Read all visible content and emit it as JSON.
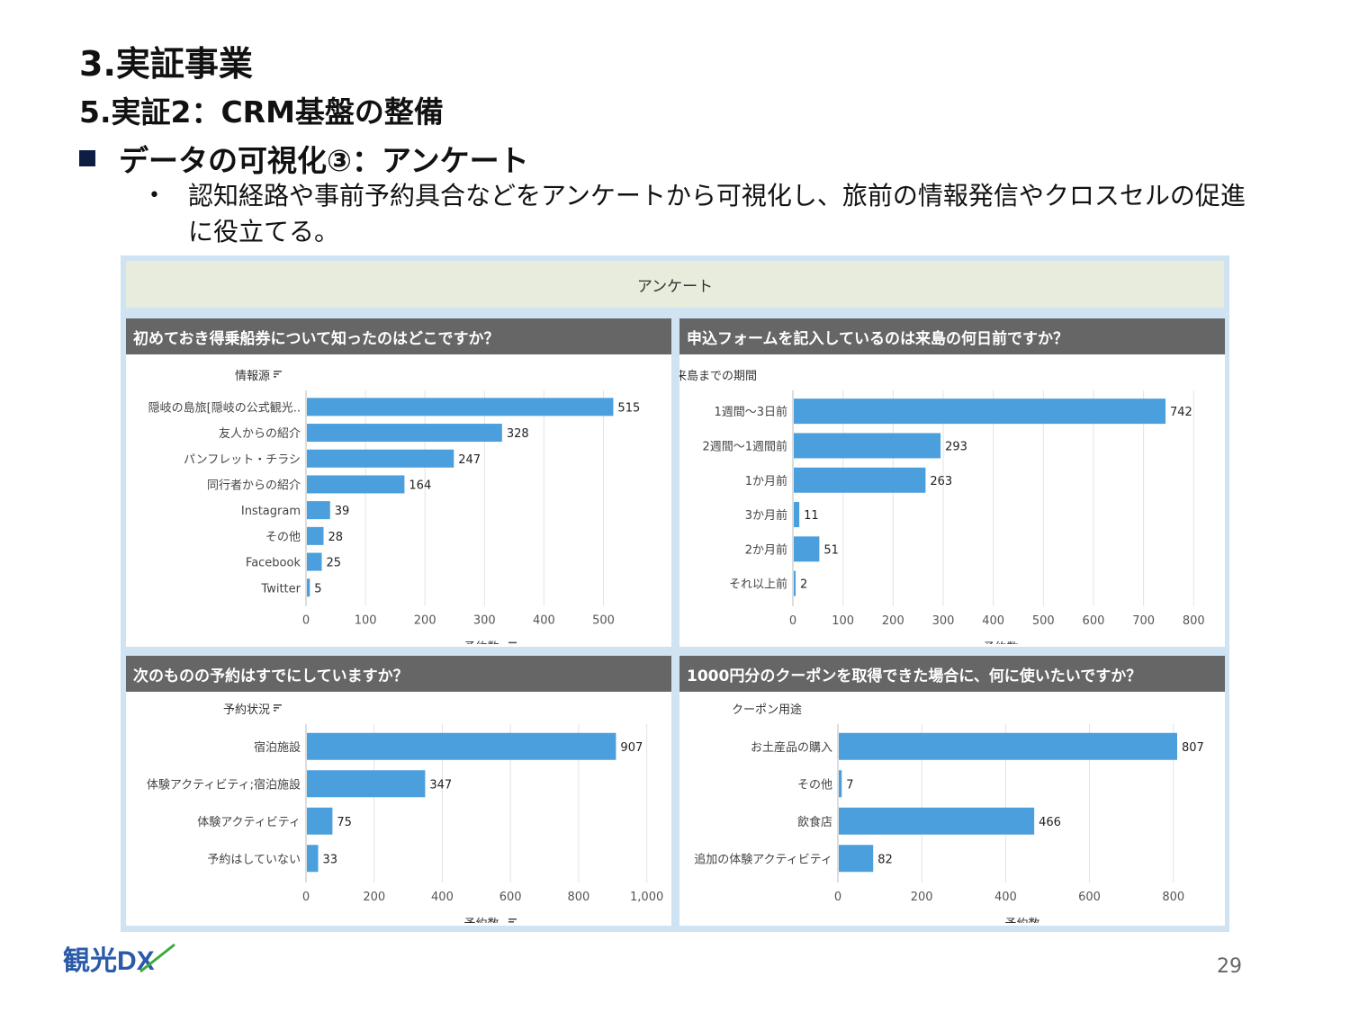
{
  "header": {
    "title": "3.実証事業",
    "subtitle": "5.実証2：CRM基盤の整備",
    "section": "データの可視化③：アンケート",
    "bullet_mark": "•",
    "bullet": "認知経路や事前予約具合などをアンケートから可視化し、旅前の情報発信やクロスセルの促進に役立てる。"
  },
  "dashboard": {
    "title": "アンケート"
  },
  "colors": {
    "bar": "#4a9fdc",
    "panel_head": "#666666",
    "frame": "#cfe3f2"
  },
  "footer": {
    "logo_text": "観光DX",
    "page": "29"
  },
  "chart_data": [
    {
      "type": "bar",
      "orientation": "horizontal",
      "title": "初めておき得乗船券について知ったのはどこですか？",
      "ylabel": "情報源",
      "xlabel": "予約数",
      "categories": [
        "隠岐の島旅[隠岐の公式観光..",
        "友人からの紹介",
        "パンフレット・チラシ",
        "同行者からの紹介",
        "Instagram",
        "その他",
        "Facebook",
        "Twitter"
      ],
      "values": [
        515,
        328,
        247,
        164,
        39,
        28,
        25,
        5
      ],
      "xlim": [
        0,
        590
      ],
      "ticks": [
        0,
        100,
        200,
        300,
        400,
        500
      ],
      "tick_labels": [
        "0",
        "100",
        "200",
        "300",
        "400",
        "500"
      ],
      "sort_icon": true
    },
    {
      "type": "bar",
      "orientation": "horizontal",
      "title": "申込フォームを記入しているのは来島の何日前ですか？",
      "ylabel": "来島までの期間",
      "xlabel": "予約数",
      "categories": [
        "1週間～3日前",
        "2週間～1週間前",
        "1か月前",
        "3か月前",
        "2か月前",
        "それ以上前"
      ],
      "values": [
        742,
        293,
        263,
        11,
        51,
        2
      ],
      "xlim": [
        0,
        830
      ],
      "ticks": [
        0,
        100,
        200,
        300,
        400,
        500,
        600,
        700,
        800
      ],
      "tick_labels": [
        "0",
        "100",
        "200",
        "300",
        "400",
        "500",
        "600",
        "700",
        "800"
      ],
      "sort_icon": false
    },
    {
      "type": "bar",
      "orientation": "horizontal",
      "title": "次のものの予約はすでにしていますか？",
      "ylabel": "予約状況",
      "xlabel": "予約数",
      "categories": [
        "宿泊施設",
        "体験アクティビティ;宿泊施設",
        "体験アクティビティ",
        "予約はしていない"
      ],
      "values": [
        907,
        347,
        75,
        33
      ],
      "xlim": [
        0,
        1030
      ],
      "ticks": [
        0,
        200,
        400,
        600,
        800,
        1000
      ],
      "tick_labels": [
        "0",
        "200",
        "400",
        "600",
        "800",
        "1,000"
      ],
      "sort_icon": true
    },
    {
      "type": "bar",
      "orientation": "horizontal",
      "title": "1000円分のクーポンを取得できた場合に、何に使いたいですか？",
      "ylabel": "クーポン用途",
      "xlabel": "予約数",
      "categories": [
        "お土産品の購入",
        "その他",
        "飲食店",
        "追加の体験アクティビティ"
      ],
      "values": [
        807,
        7,
        466,
        82
      ],
      "xlim": [
        0,
        880
      ],
      "ticks": [
        0,
        200,
        400,
        600,
        800
      ],
      "tick_labels": [
        "0",
        "200",
        "400",
        "600",
        "800"
      ],
      "sort_icon": false
    }
  ]
}
